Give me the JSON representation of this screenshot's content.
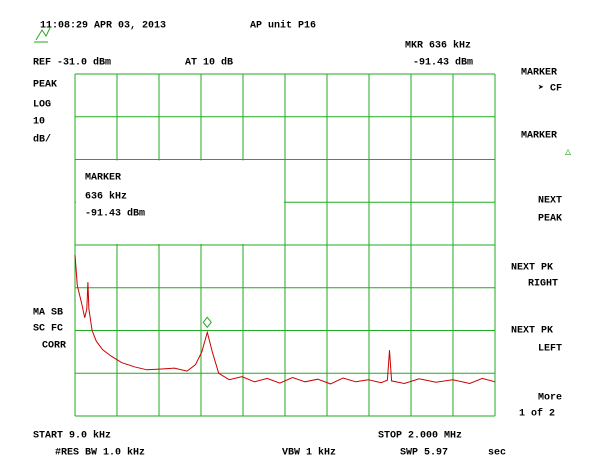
{
  "header": {
    "timestamp": "11:08:29 APR 03, 2013",
    "title": "AP unit P16"
  },
  "status": {
    "ref": "REF -31.0 dBm",
    "atten": "AT 10 dB",
    "marker_freq": "MKR 636 kHz",
    "marker_level": "-91.43 dBm"
  },
  "left_labels": [
    "PEAK",
    "LOG",
    "10",
    "dB/"
  ],
  "marker_box": [
    "MARKER",
    "636 kHz",
    "-91.43 dBm"
  ],
  "corrections": [
    "MA SB",
    "SC FC",
    "CORR"
  ],
  "footer": {
    "start": "START 9.0 kHz",
    "stop": "STOP 2.000 MHz",
    "rbw": "#RES BW 1.0 kHz",
    "vbw": "VBW 1 kHz",
    "sweep": "SWP 5.97",
    "sweep_unit": "sec"
  },
  "softkeys": [
    "MARKER",
    "➤ CF",
    "MARKER",
    "△",
    "NEXT",
    "PEAK",
    "NEXT PK",
    "RIGHT",
    "NEXT PK",
    "LEFT",
    "More",
    "1 of 2"
  ],
  "chart_data": {
    "type": "line",
    "color": "#cc0000",
    "grid_color": "#22aa22",
    "xlim": [
      9,
      2000
    ],
    "ylim": [
      -111,
      -31
    ],
    "x": [
      9,
      20,
      40,
      55,
      65,
      70,
      75,
      90,
      110,
      140,
      180,
      230,
      290,
      350,
      420,
      480,
      540,
      580,
      610,
      636,
      660,
      690,
      740,
      800,
      860,
      920,
      980,
      1040,
      1100,
      1160,
      1220,
      1280,
      1340,
      1400,
      1460,
      1490,
      1500,
      1510,
      1570,
      1640,
      1720,
      1800,
      1880,
      1940,
      2000
    ],
    "values": [
      -73.3,
      -80.5,
      -84.5,
      -88,
      -86,
      -79.7,
      -86,
      -91,
      -93.5,
      -95.5,
      -97,
      -98.5,
      -99.5,
      -100.2,
      -100,
      -99.8,
      -100.5,
      -99,
      -96,
      -91.43,
      -96,
      -101,
      -102.5,
      -101.8,
      -103,
      -102.2,
      -103.3,
      -102,
      -103,
      -102.4,
      -103.5,
      -102.1,
      -103,
      -102.5,
      -103.2,
      -102.6,
      -95.6,
      -102.8,
      -103.4,
      -102.3,
      -103.1,
      -102.5,
      -103.4,
      -102.2,
      -103
    ],
    "marker_index": 19
  }
}
